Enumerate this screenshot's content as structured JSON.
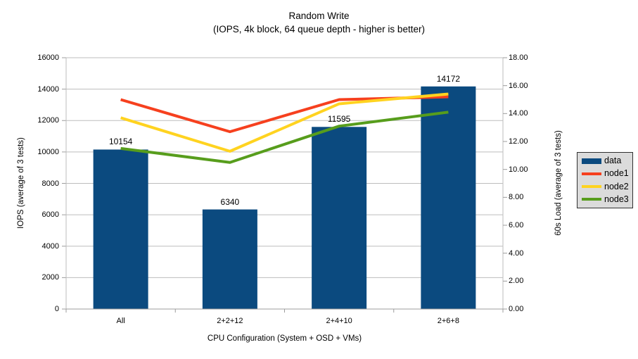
{
  "title": {
    "line1": "Random Write",
    "line2": "(IOPS, 4k block, 64 queue depth - higher is better)"
  },
  "chart_data": {
    "type": "combo-bar-line",
    "categories": [
      "All",
      "2+2+12",
      "2+4+10",
      "2+6+8"
    ],
    "bar_series": {
      "name": "data",
      "axis": "left",
      "color": "#0B4A7F",
      "values": [
        10154,
        6340,
        11595,
        14172
      ],
      "value_labels": [
        "10154",
        "6340",
        "11595",
        "14172"
      ]
    },
    "line_series": [
      {
        "name": "node1",
        "axis": "right",
        "color": "#F6401E",
        "values": [
          15.0,
          12.7,
          15.0,
          15.2
        ]
      },
      {
        "name": "node2",
        "axis": "right",
        "color": "#FFD320",
        "values": [
          13.7,
          11.3,
          14.7,
          15.4
        ]
      },
      {
        "name": "node3",
        "axis": "right",
        "color": "#579D1C",
        "values": [
          11.5,
          10.5,
          13.1,
          14.1
        ]
      }
    ],
    "left_axis": {
      "title": "IOPS (average of 3 tests)",
      "min": 0,
      "max": 16000,
      "step": 2000,
      "tick_labels": [
        "0",
        "2000",
        "4000",
        "6000",
        "8000",
        "10000",
        "12000",
        "14000",
        "16000"
      ]
    },
    "right_axis": {
      "title": "60s Load (average of 3 tests)",
      "min": 0,
      "max": 18,
      "step": 2,
      "tick_labels": [
        "0.00",
        "2.00",
        "4.00",
        "6.00",
        "8.00",
        "10.00",
        "12.00",
        "14.00",
        "16.00",
        "18.00"
      ]
    },
    "x_axis": {
      "title": "CPU Configuration (System + OSD + VMs)"
    },
    "legend": {
      "position": "right",
      "entries": [
        "data",
        "node1",
        "node2",
        "node3"
      ]
    },
    "grid": {
      "horizontal": true
    },
    "colors": {
      "background": "#FFFFFF",
      "gridline": "#BDBDBD",
      "axis_line": "#9C9C9C",
      "legend_bg": "#DBDBDB",
      "legend_border": "#303030",
      "text": "#000000"
    }
  }
}
